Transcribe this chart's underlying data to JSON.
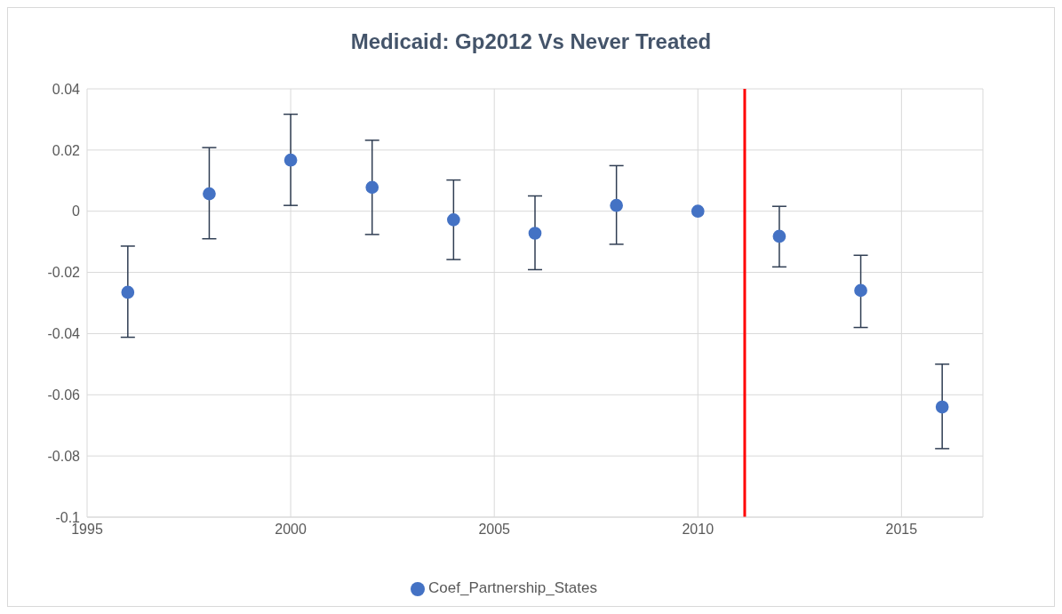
{
  "chart_data": {
    "type": "scatter",
    "title": "Medicaid: Gp2012 Vs Never Treated",
    "x": [
      1996,
      1998,
      2000,
      2002,
      2004,
      2006,
      2008,
      2010,
      2012,
      2014,
      2016
    ],
    "series": [
      {
        "name": "Coef_Partnership_States",
        "color": "#4472c4",
        "values": [
          -0.0265,
          0.0057,
          0.0167,
          0.0078,
          -0.0028,
          -0.0072,
          0.0019,
          0,
          -0.0082,
          -0.0259,
          -0.064
        ],
        "errors": [
          [
            -0.0412,
            -0.0114
          ],
          [
            -0.009,
            0.0208
          ],
          [
            0.0019,
            0.0317
          ],
          [
            -0.0076,
            0.0232
          ],
          [
            -0.0158,
            0.0102
          ],
          [
            -0.0191,
            0.005
          ],
          [
            -0.0108,
            0.0149
          ],
          null,
          [
            -0.0182,
            0.0016
          ],
          [
            -0.038,
            -0.0144
          ],
          [
            -0.0776,
            -0.05
          ]
        ]
      }
    ],
    "xlim": [
      1995,
      2017
    ],
    "xticks": [
      1995,
      2000,
      2005,
      2010,
      2015
    ],
    "ylim": [
      -0.1,
      0.04
    ],
    "yticks": [
      -0.1,
      -0.08,
      -0.06,
      -0.04,
      -0.02,
      0,
      0.02,
      0.04
    ],
    "ref_lines": [
      {
        "axis": "x",
        "value": 2011.15,
        "color": "#ff0000"
      }
    ],
    "grid": true,
    "legend": "bottom",
    "marker": "circle"
  }
}
